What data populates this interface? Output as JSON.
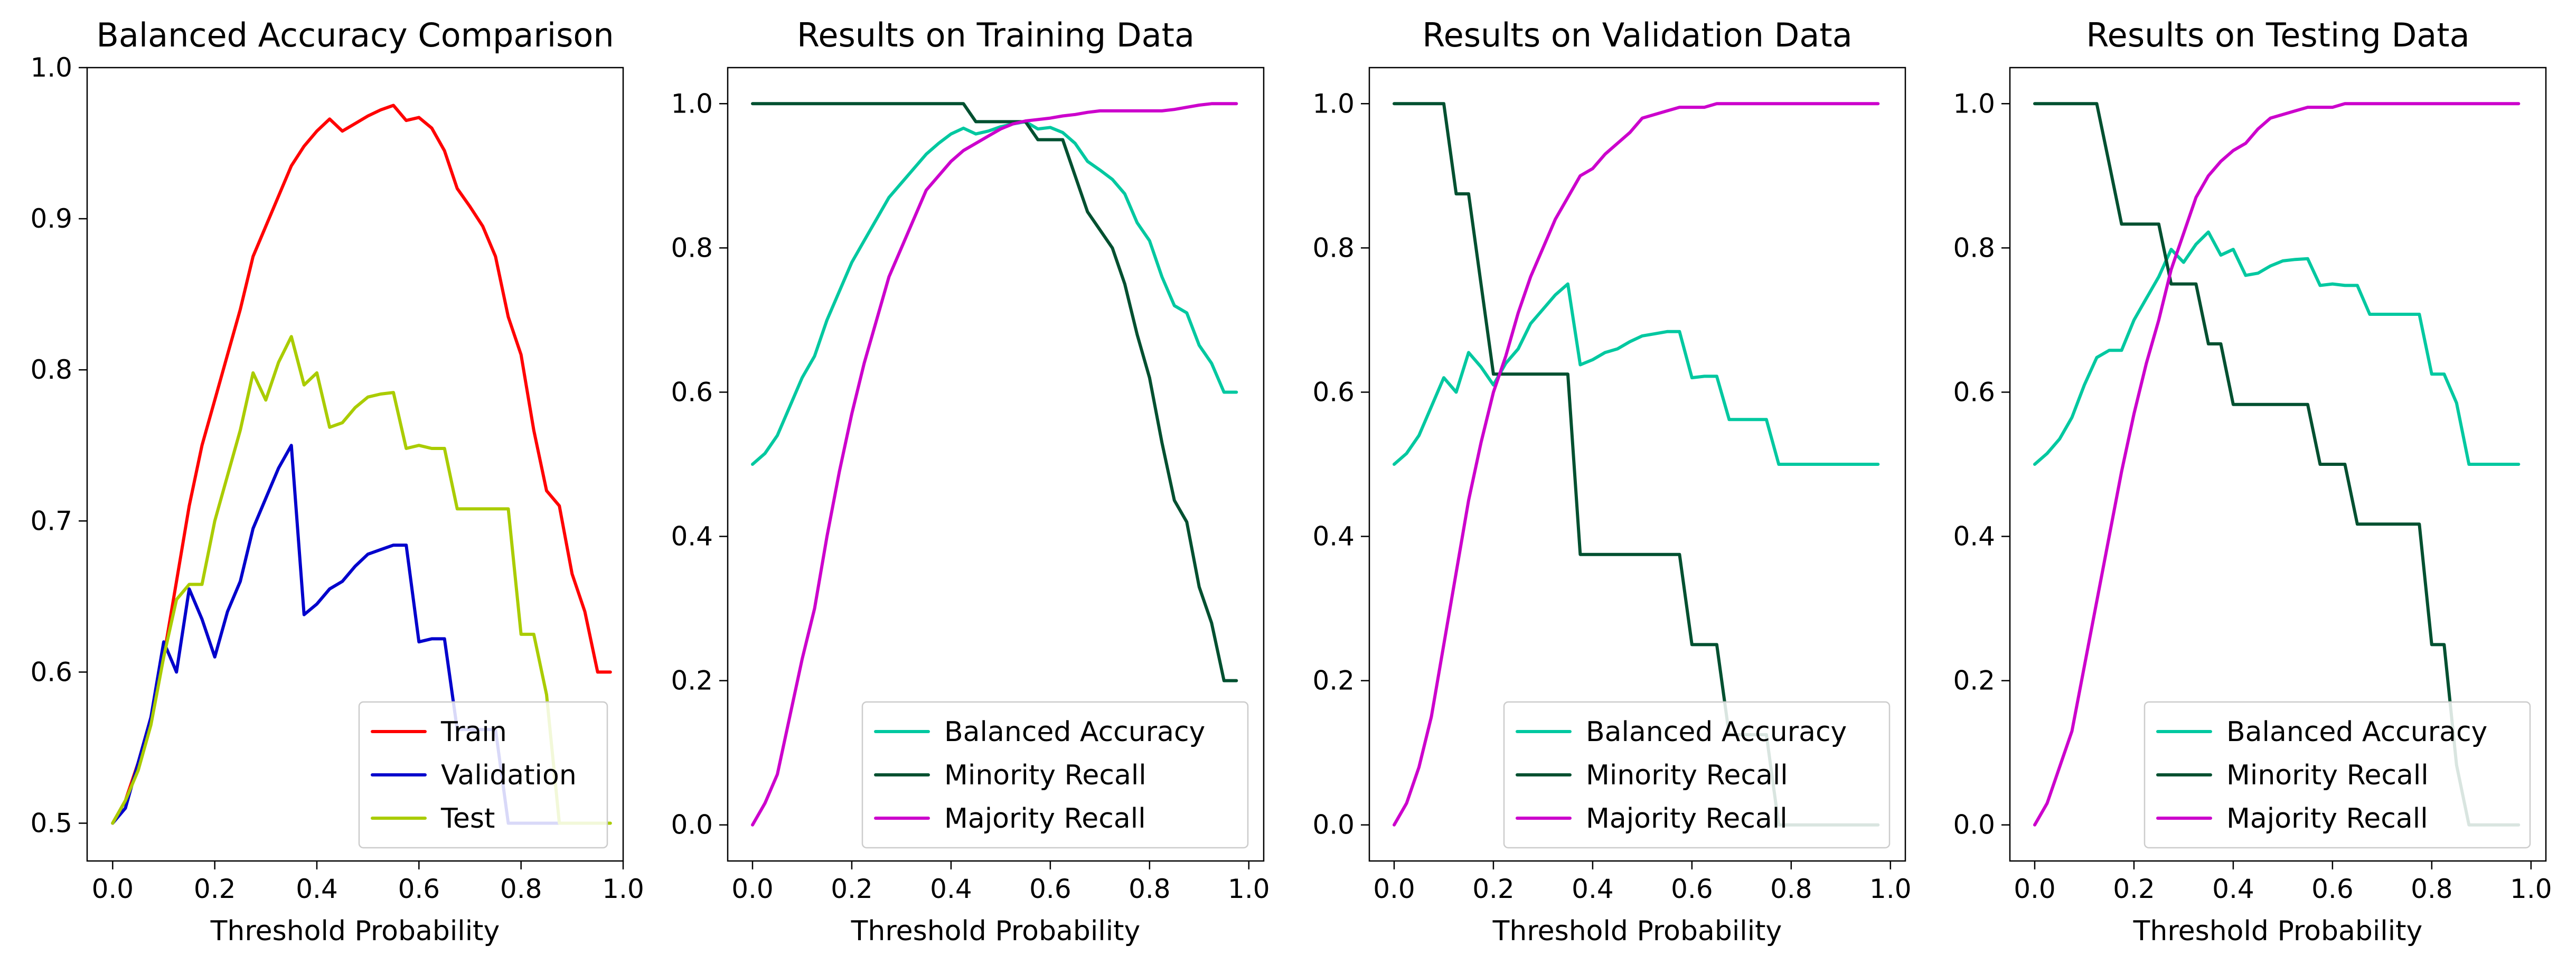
{
  "chart_data": [
    {
      "type": "line",
      "title": "Balanced Accuracy Comparison",
      "xlabel": "Threshold Probability",
      "ylabel": "",
      "xlim": [
        -0.05,
        1.0
      ],
      "ylim": [
        0.475,
        1.0
      ],
      "xticks": [
        0.0,
        0.2,
        0.4,
        0.6,
        0.8,
        1.0
      ],
      "yticks": [
        0.5,
        0.6,
        0.7,
        0.8,
        0.9,
        1.0
      ],
      "grid": false,
      "legend_position": "lower-right",
      "series": [
        {
          "name": "Train",
          "color": "#ff0000",
          "x": [
            0.0,
            0.025,
            0.05,
            0.075,
            0.1,
            0.125,
            0.15,
            0.175,
            0.2,
            0.225,
            0.25,
            0.275,
            0.3,
            0.325,
            0.35,
            0.375,
            0.4,
            0.425,
            0.45,
            0.475,
            0.5,
            0.525,
            0.55,
            0.575,
            0.6,
            0.625,
            0.65,
            0.675,
            0.7,
            0.725,
            0.75,
            0.775,
            0.8,
            0.825,
            0.85,
            0.875,
            0.9,
            0.925,
            0.95,
            0.975
          ],
          "y": [
            0.5,
            0.515,
            0.54,
            0.57,
            0.61,
            0.66,
            0.71,
            0.75,
            0.78,
            0.81,
            0.84,
            0.875,
            0.895,
            0.915,
            0.935,
            0.948,
            0.958,
            0.966,
            0.958,
            0.963,
            0.968,
            0.972,
            0.975,
            0.965,
            0.967,
            0.96,
            0.945,
            0.92,
            0.908,
            0.895,
            0.875,
            0.835,
            0.81,
            0.76,
            0.72,
            0.71,
            0.665,
            0.64,
            0.6,
            0.6
          ]
        },
        {
          "name": "Validation",
          "color": "#0000cc",
          "x": [
            0.0,
            0.025,
            0.05,
            0.075,
            0.1,
            0.125,
            0.15,
            0.175,
            0.2,
            0.225,
            0.25,
            0.275,
            0.3,
            0.325,
            0.35,
            0.375,
            0.4,
            0.425,
            0.45,
            0.475,
            0.5,
            0.525,
            0.55,
            0.575,
            0.6,
            0.625,
            0.65,
            0.675,
            0.7,
            0.725,
            0.75,
            0.775,
            0.8,
            0.825,
            0.85,
            0.875
          ],
          "y": [
            0.5,
            0.51,
            0.54,
            0.57,
            0.62,
            0.6,
            0.655,
            0.635,
            0.61,
            0.64,
            0.66,
            0.695,
            0.715,
            0.735,
            0.75,
            0.638,
            0.645,
            0.655,
            0.66,
            0.67,
            0.678,
            0.681,
            0.684,
            0.684,
            0.62,
            0.622,
            0.622,
            0.562,
            0.562,
            0.562,
            0.562,
            0.5,
            0.5,
            0.5,
            0.5,
            0.5
          ]
        },
        {
          "name": "Test",
          "color": "#aacc00",
          "x": [
            0.0,
            0.025,
            0.05,
            0.075,
            0.1,
            0.125,
            0.15,
            0.175,
            0.2,
            0.225,
            0.25,
            0.275,
            0.3,
            0.325,
            0.35,
            0.375,
            0.4,
            0.425,
            0.45,
            0.475,
            0.5,
            0.525,
            0.55,
            0.575,
            0.6,
            0.625,
            0.65,
            0.675,
            0.7,
            0.725,
            0.75,
            0.775,
            0.8,
            0.825,
            0.85,
            0.875,
            0.9,
            0.925,
            0.95,
            0.975
          ],
          "y": [
            0.5,
            0.515,
            0.535,
            0.565,
            0.61,
            0.648,
            0.658,
            0.658,
            0.7,
            0.73,
            0.76,
            0.798,
            0.78,
            0.805,
            0.822,
            0.79,
            0.798,
            0.762,
            0.765,
            0.775,
            0.782,
            0.784,
            0.785,
            0.748,
            0.75,
            0.748,
            0.748,
            0.708,
            0.708,
            0.708,
            0.708,
            0.708,
            0.625,
            0.625,
            0.585,
            0.5,
            0.5,
            0.5,
            0.5,
            0.5
          ]
        }
      ]
    },
    {
      "type": "line",
      "title": "Results on Training Data",
      "xlabel": "Threshold Probability",
      "ylabel": "",
      "xlim": [
        -0.05,
        1.03
      ],
      "ylim": [
        -0.05,
        1.05
      ],
      "xticks": [
        0.0,
        0.2,
        0.4,
        0.6,
        0.8,
        1.0
      ],
      "yticks": [
        0.0,
        0.2,
        0.4,
        0.6,
        0.8,
        1.0
      ],
      "grid": false,
      "legend_position": "lower-right",
      "series": [
        {
          "name": "Balanced Accuracy",
          "color": "#00c8a0",
          "x": [
            0.0,
            0.025,
            0.05,
            0.075,
            0.1,
            0.125,
            0.15,
            0.175,
            0.2,
            0.225,
            0.25,
            0.275,
            0.3,
            0.325,
            0.35,
            0.375,
            0.4,
            0.425,
            0.45,
            0.475,
            0.5,
            0.525,
            0.55,
            0.575,
            0.6,
            0.625,
            0.65,
            0.675,
            0.7,
            0.725,
            0.75,
            0.775,
            0.8,
            0.825,
            0.85,
            0.875,
            0.9,
            0.925,
            0.95,
            0.975
          ],
          "y": [
            0.5,
            0.515,
            0.54,
            0.58,
            0.62,
            0.65,
            0.7,
            0.74,
            0.78,
            0.81,
            0.84,
            0.87,
            0.89,
            0.91,
            0.93,
            0.945,
            0.958,
            0.966,
            0.958,
            0.962,
            0.968,
            0.972,
            0.975,
            0.965,
            0.967,
            0.96,
            0.945,
            0.92,
            0.908,
            0.895,
            0.875,
            0.835,
            0.81,
            0.76,
            0.72,
            0.71,
            0.665,
            0.64,
            0.6,
            0.6
          ]
        },
        {
          "name": "Minority Recall",
          "color": "#005030",
          "x": [
            0.0,
            0.425,
            0.45,
            0.5,
            0.55,
            0.575,
            0.6,
            0.625,
            0.65,
            0.675,
            0.7,
            0.725,
            0.75,
            0.775,
            0.8,
            0.825,
            0.85,
            0.875,
            0.9,
            0.925,
            0.95,
            0.975
          ],
          "y": [
            1.0,
            1.0,
            0.975,
            0.975,
            0.975,
            0.95,
            0.95,
            0.95,
            0.9,
            0.85,
            0.825,
            0.8,
            0.75,
            0.68,
            0.62,
            0.53,
            0.45,
            0.42,
            0.33,
            0.28,
            0.2,
            0.2
          ]
        },
        {
          "name": "Majority Recall",
          "color": "#cc00cc",
          "x": [
            0.0,
            0.025,
            0.05,
            0.075,
            0.1,
            0.125,
            0.15,
            0.175,
            0.2,
            0.225,
            0.25,
            0.275,
            0.3,
            0.325,
            0.35,
            0.375,
            0.4,
            0.425,
            0.45,
            0.475,
            0.5,
            0.525,
            0.55,
            0.575,
            0.6,
            0.625,
            0.65,
            0.675,
            0.7,
            0.725,
            0.75,
            0.775,
            0.8,
            0.825,
            0.85,
            0.875,
            0.9,
            0.925,
            0.95,
            0.975
          ],
          "y": [
            0.0,
            0.03,
            0.07,
            0.15,
            0.23,
            0.3,
            0.4,
            0.49,
            0.57,
            0.64,
            0.7,
            0.76,
            0.8,
            0.84,
            0.88,
            0.9,
            0.92,
            0.935,
            0.945,
            0.955,
            0.965,
            0.972,
            0.976,
            0.978,
            0.98,
            0.983,
            0.985,
            0.988,
            0.99,
            0.99,
            0.99,
            0.99,
            0.99,
            0.99,
            0.992,
            0.995,
            0.998,
            1.0,
            1.0,
            1.0
          ]
        }
      ]
    },
    {
      "type": "line",
      "title": "Results on Validation Data",
      "xlabel": "Threshold Probability",
      "ylabel": "",
      "xlim": [
        -0.05,
        1.03
      ],
      "ylim": [
        -0.05,
        1.05
      ],
      "xticks": [
        0.0,
        0.2,
        0.4,
        0.6,
        0.8,
        1.0
      ],
      "yticks": [
        0.0,
        0.2,
        0.4,
        0.6,
        0.8,
        1.0
      ],
      "grid": false,
      "legend_position": "lower-right",
      "series": [
        {
          "name": "Balanced Accuracy",
          "color": "#00c8a0",
          "x": [
            0.0,
            0.025,
            0.05,
            0.075,
            0.1,
            0.125,
            0.15,
            0.175,
            0.2,
            0.225,
            0.25,
            0.275,
            0.3,
            0.325,
            0.35,
            0.375,
            0.4,
            0.425,
            0.45,
            0.475,
            0.5,
            0.525,
            0.55,
            0.575,
            0.6,
            0.625,
            0.65,
            0.675,
            0.7,
            0.725,
            0.75,
            0.775,
            0.8,
            0.825,
            0.85,
            0.875,
            0.9,
            0.925,
            0.95,
            0.975
          ],
          "y": [
            0.5,
            0.515,
            0.54,
            0.58,
            0.62,
            0.6,
            0.655,
            0.635,
            0.61,
            0.64,
            0.66,
            0.695,
            0.715,
            0.735,
            0.75,
            0.638,
            0.645,
            0.655,
            0.66,
            0.67,
            0.678,
            0.681,
            0.684,
            0.684,
            0.62,
            0.622,
            0.622,
            0.562,
            0.562,
            0.562,
            0.562,
            0.5,
            0.5,
            0.5,
            0.5,
            0.5,
            0.5,
            0.5,
            0.5,
            0.5
          ]
        },
        {
          "name": "Minority Recall",
          "color": "#005030",
          "x": [
            0.0,
            0.1,
            0.125,
            0.15,
            0.175,
            0.2,
            0.225,
            0.35,
            0.375,
            0.575,
            0.6,
            0.65,
            0.675,
            0.75,
            0.775,
            0.975
          ],
          "y": [
            1.0,
            1.0,
            0.875,
            0.875,
            0.75,
            0.625,
            0.625,
            0.625,
            0.375,
            0.375,
            0.25,
            0.25,
            0.125,
            0.125,
            0.0,
            0.0
          ]
        },
        {
          "name": "Majority Recall",
          "color": "#cc00cc",
          "x": [
            0.0,
            0.025,
            0.05,
            0.075,
            0.1,
            0.125,
            0.15,
            0.175,
            0.2,
            0.225,
            0.25,
            0.275,
            0.3,
            0.325,
            0.35,
            0.375,
            0.4,
            0.425,
            0.45,
            0.475,
            0.5,
            0.525,
            0.55,
            0.575,
            0.6,
            0.625,
            0.65,
            0.675,
            0.7,
            0.725,
            0.75,
            0.775,
            0.8,
            0.825,
            0.85,
            0.875,
            0.9,
            0.925,
            0.95,
            0.975
          ],
          "y": [
            0.0,
            0.03,
            0.08,
            0.15,
            0.25,
            0.35,
            0.45,
            0.53,
            0.6,
            0.65,
            0.71,
            0.76,
            0.8,
            0.84,
            0.87,
            0.9,
            0.91,
            0.93,
            0.945,
            0.96,
            0.98,
            0.985,
            0.99,
            0.995,
            0.995,
            0.995,
            1.0,
            1.0,
            1.0,
            1.0,
            1.0,
            1.0,
            1.0,
            1.0,
            1.0,
            1.0,
            1.0,
            1.0,
            1.0,
            1.0
          ]
        }
      ]
    },
    {
      "type": "line",
      "title": "Results on Testing Data",
      "xlabel": "Threshold Probability",
      "ylabel": "",
      "xlim": [
        -0.05,
        1.03
      ],
      "ylim": [
        -0.05,
        1.05
      ],
      "xticks": [
        0.0,
        0.2,
        0.4,
        0.6,
        0.8,
        1.0
      ],
      "yticks": [
        0.0,
        0.2,
        0.4,
        0.6,
        0.8,
        1.0
      ],
      "grid": false,
      "legend_position": "lower-right",
      "series": [
        {
          "name": "Balanced Accuracy",
          "color": "#00c8a0",
          "x": [
            0.0,
            0.025,
            0.05,
            0.075,
            0.1,
            0.125,
            0.15,
            0.175,
            0.2,
            0.225,
            0.25,
            0.275,
            0.3,
            0.325,
            0.35,
            0.375,
            0.4,
            0.425,
            0.45,
            0.475,
            0.5,
            0.525,
            0.55,
            0.575,
            0.6,
            0.625,
            0.65,
            0.675,
            0.7,
            0.725,
            0.75,
            0.775,
            0.8,
            0.825,
            0.85,
            0.875,
            0.9,
            0.925,
            0.95,
            0.975
          ],
          "y": [
            0.5,
            0.515,
            0.535,
            0.565,
            0.61,
            0.648,
            0.658,
            0.658,
            0.7,
            0.73,
            0.76,
            0.798,
            0.78,
            0.805,
            0.822,
            0.79,
            0.798,
            0.762,
            0.765,
            0.775,
            0.782,
            0.784,
            0.785,
            0.748,
            0.75,
            0.748,
            0.748,
            0.708,
            0.708,
            0.708,
            0.708,
            0.708,
            0.625,
            0.625,
            0.585,
            0.5,
            0.5,
            0.5,
            0.5,
            0.5
          ]
        },
        {
          "name": "Minority Recall",
          "color": "#005030",
          "x": [
            0.0,
            0.125,
            0.15,
            0.175,
            0.25,
            0.275,
            0.325,
            0.35,
            0.375,
            0.4,
            0.425,
            0.55,
            0.575,
            0.625,
            0.65,
            0.675,
            0.775,
            0.8,
            0.825,
            0.85,
            0.875,
            0.975
          ],
          "y": [
            1.0,
            1.0,
            0.917,
            0.833,
            0.833,
            0.75,
            0.75,
            0.667,
            0.667,
            0.583,
            0.583,
            0.583,
            0.5,
            0.5,
            0.417,
            0.417,
            0.417,
            0.25,
            0.25,
            0.083,
            0.0,
            0.0
          ]
        },
        {
          "name": "Majority Recall",
          "color": "#cc00cc",
          "x": [
            0.0,
            0.025,
            0.05,
            0.075,
            0.1,
            0.125,
            0.15,
            0.175,
            0.2,
            0.225,
            0.25,
            0.275,
            0.3,
            0.325,
            0.35,
            0.375,
            0.4,
            0.425,
            0.45,
            0.475,
            0.5,
            0.525,
            0.55,
            0.575,
            0.6,
            0.625,
            0.65,
            0.675,
            0.7,
            0.725,
            0.75,
            0.775,
            0.8,
            0.825,
            0.85,
            0.875,
            0.9,
            0.925,
            0.95,
            0.975
          ],
          "y": [
            0.0,
            0.03,
            0.08,
            0.13,
            0.22,
            0.31,
            0.4,
            0.49,
            0.57,
            0.64,
            0.7,
            0.77,
            0.82,
            0.87,
            0.9,
            0.92,
            0.935,
            0.945,
            0.965,
            0.98,
            0.985,
            0.99,
            0.995,
            0.995,
            0.995,
            1.0,
            1.0,
            1.0,
            1.0,
            1.0,
            1.0,
            1.0,
            1.0,
            1.0,
            1.0,
            1.0,
            1.0,
            1.0,
            1.0,
            1.0
          ]
        }
      ]
    }
  ]
}
